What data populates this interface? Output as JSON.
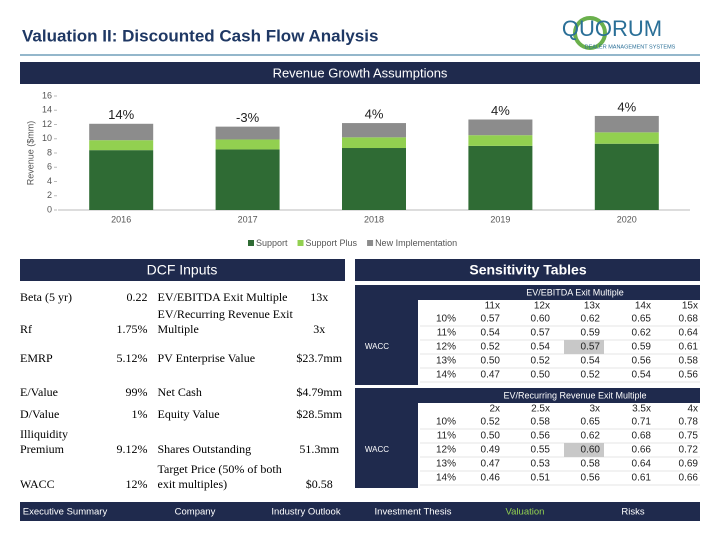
{
  "header": {
    "title": "Valuation II: Discounted Cash Flow Analysis",
    "logo": {
      "name": "QUORUM",
      "tagline": "DEALER MANAGEMENT SYSTEMS"
    }
  },
  "chart_data": {
    "type": "bar",
    "stacked": true,
    "title": "Revenue Growth Assumptions",
    "y_label": "Revenue ($mm)",
    "categories": [
      "2016",
      "2017",
      "2018",
      "2019",
      "2020"
    ],
    "series": [
      {
        "name": "Support",
        "color": "#2f6b34",
        "values": [
          8.4,
          8.5,
          8.7,
          9.0,
          9.3
        ]
      },
      {
        "name": "Support Plus",
        "color": "#92d050",
        "values": [
          1.4,
          1.4,
          1.5,
          1.5,
          1.6
        ]
      },
      {
        "name": "New Implementation",
        "color": "#8c8c8c",
        "values": [
          2.3,
          1.8,
          2.0,
          2.2,
          2.3
        ]
      }
    ],
    "annotations": [
      "14%",
      "-3%",
      "4%",
      "4%",
      "4%"
    ],
    "ylim": [
      0,
      16
    ],
    "yticks": [
      0,
      2,
      4,
      6,
      8,
      10,
      12,
      14,
      16
    ],
    "legend": "bottom"
  },
  "dcf_inputs": {
    "title": "DCF Inputs",
    "rows": [
      {
        "label": "Beta (5 yr)",
        "value": "0.22",
        "label2": "EV/EBITDA Exit Multiple",
        "value2": "13x"
      },
      {
        "label": "Rf",
        "value": "1.75%",
        "label2": "EV/Recurring Revenue Exit Multiple",
        "value2": "3x"
      },
      {
        "label": "EMRP",
        "value": "5.12%",
        "label2": "PV Enterprise Value",
        "value2": "$23.7mm"
      },
      {
        "label": "E/Value",
        "value": "99%",
        "label2": "Net Cash",
        "value2": "$4.79mm"
      },
      {
        "label": "D/Value",
        "value": "1%",
        "label2": "Equity Value",
        "value2": "$28.5mm"
      },
      {
        "label": "Illiquidity Premium",
        "value": "9.12%",
        "label2": "Shares Outstanding",
        "value2": "51.3mm"
      },
      {
        "label": "WACC",
        "value": "12%",
        "label2": "Target Price (50% of both exit multiples)",
        "value2": "$0.58"
      }
    ]
  },
  "sensitivity": {
    "title": "Sensitivity Tables",
    "tables": [
      {
        "title": "EV/EBITDA Exit Multiple",
        "axis_label": "WACC",
        "columns": [
          "11x",
          "12x",
          "13x",
          "14x",
          "15x"
        ],
        "rows": [
          {
            "label": "10%",
            "values": [
              "0.57",
              "0.60",
              "0.62",
              "0.65",
              "0.68"
            ]
          },
          {
            "label": "11%",
            "values": [
              "0.54",
              "0.57",
              "0.59",
              "0.62",
              "0.64"
            ]
          },
          {
            "label": "12%",
            "values": [
              "0.52",
              "0.54",
              "0.57",
              "0.59",
              "0.61"
            ]
          },
          {
            "label": "13%",
            "values": [
              "0.50",
              "0.52",
              "0.54",
              "0.56",
              "0.58"
            ]
          },
          {
            "label": "14%",
            "values": [
              "0.47",
              "0.50",
              "0.52",
              "0.54",
              "0.56"
            ]
          }
        ],
        "highlight": {
          "row": 2,
          "col": 2
        }
      },
      {
        "title": "EV/Recurring Revenue Exit Multiple",
        "axis_label": "WACC",
        "columns": [
          "2x",
          "2.5x",
          "3x",
          "3.5x",
          "4x"
        ],
        "rows": [
          {
            "label": "10%",
            "values": [
              "0.52",
              "0.58",
              "0.65",
              "0.71",
              "0.78"
            ]
          },
          {
            "label": "11%",
            "values": [
              "0.50",
              "0.56",
              "0.62",
              "0.68",
              "0.75"
            ]
          },
          {
            "label": "12%",
            "values": [
              "0.49",
              "0.55",
              "0.60",
              "0.66",
              "0.72"
            ]
          },
          {
            "label": "13%",
            "values": [
              "0.47",
              "0.53",
              "0.58",
              "0.64",
              "0.69"
            ]
          },
          {
            "label": "14%",
            "values": [
              "0.46",
              "0.51",
              "0.56",
              "0.61",
              "0.66"
            ]
          }
        ],
        "highlight": {
          "row": 2,
          "col": 2
        }
      }
    ]
  },
  "nav": {
    "items": [
      "Executive Summary",
      "Company",
      "Industry Outlook",
      "Investment Thesis",
      "Valuation",
      "Risks"
    ],
    "active": 4
  }
}
